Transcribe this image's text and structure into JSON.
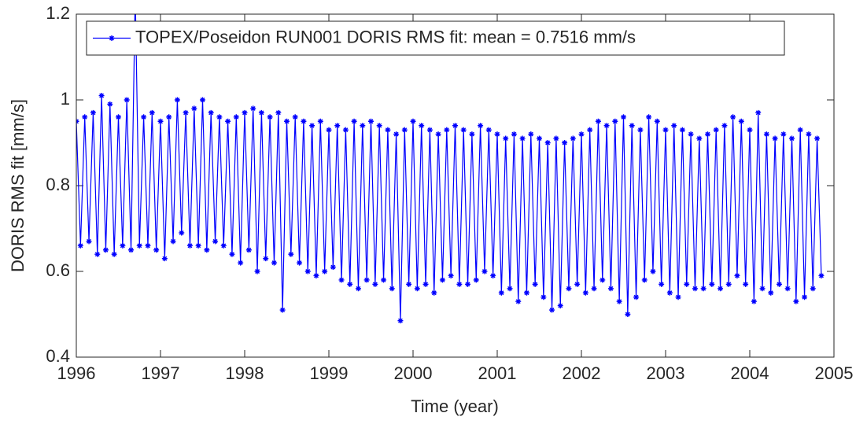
{
  "chart_data": {
    "type": "line",
    "xlabel": "Time (year)",
    "ylabel": "DORIS RMS fit [mm/s]",
    "xlim": [
      1996,
      2005
    ],
    "ylim": [
      0.4,
      1.2
    ],
    "xticks": [
      1996,
      1997,
      1998,
      1999,
      2000,
      2001,
      2002,
      2003,
      2004,
      2005
    ],
    "yticks": [
      0.4,
      0.6,
      0.8,
      1,
      1.2
    ],
    "legend": "top-left",
    "x": [
      1996,
      1996.05,
      1996.1,
      1996.15,
      1996.2,
      1996.25,
      1996.3,
      1996.35,
      1996.4,
      1996.45,
      1996.5,
      1996.55,
      1996.6,
      1996.65,
      1996.7,
      1996.75,
      1996.8,
      1996.85,
      1996.9,
      1996.95,
      1997,
      1997.05,
      1997.1,
      1997.15,
      1997.2,
      1997.25,
      1997.3,
      1997.35,
      1997.4,
      1997.45,
      1997.5,
      1997.55,
      1997.6,
      1997.65,
      1997.7,
      1997.75,
      1997.8,
      1997.85,
      1997.9,
      1997.95,
      1998,
      1998.05,
      1998.1,
      1998.15,
      1998.2,
      1998.25,
      1998.3,
      1998.35,
      1998.4,
      1998.45,
      1998.5,
      1998.55,
      1998.6,
      1998.65,
      1998.7,
      1998.75,
      1998.8,
      1998.85,
      1998.9,
      1998.95,
      1999,
      1999.05,
      1999.1,
      1999.15,
      1999.2,
      1999.25,
      1999.3,
      1999.35,
      1999.4,
      1999.45,
      1999.5,
      1999.55,
      1999.6,
      1999.65,
      1999.7,
      1999.75,
      1999.8,
      1999.85,
      1999.9,
      1999.95,
      2000,
      2000.05,
      2000.1,
      2000.15,
      2000.2,
      2000.25,
      2000.3,
      2000.35,
      2000.4,
      2000.45,
      2000.5,
      2000.55,
      2000.6,
      2000.65,
      2000.7,
      2000.75,
      2000.8,
      2000.85,
      2000.9,
      2000.95,
      2001,
      2001.05,
      2001.1,
      2001.15,
      2001.2,
      2001.25,
      2001.3,
      2001.35,
      2001.4,
      2001.45,
      2001.5,
      2001.55,
      2001.6,
      2001.65,
      2001.7,
      2001.75,
      2001.8,
      2001.85,
      2001.9,
      2001.95,
      2002,
      2002.05,
      2002.1,
      2002.15,
      2002.2,
      2002.25,
      2002.3,
      2002.35,
      2002.4,
      2002.45,
      2002.5,
      2002.55,
      2002.6,
      2002.65,
      2002.7,
      2002.75,
      2002.8,
      2002.85,
      2002.9,
      2002.95,
      2003,
      2003.05,
      2003.1,
      2003.15,
      2003.2,
      2003.25,
      2003.3,
      2003.35,
      2003.4,
      2003.45,
      2003.5,
      2003.55,
      2003.6,
      2003.65,
      2003.7,
      2003.75,
      2003.8,
      2003.85,
      2003.9,
      2003.95,
      2004,
      2004.05,
      2004.1,
      2004.15,
      2004.2,
      2004.25,
      2004.3,
      2004.35,
      2004.4,
      2004.45,
      2004.5,
      2004.55,
      2004.6,
      2004.65,
      2004.7,
      2004.75,
      2004.8,
      2004.85
    ],
    "series": [
      {
        "name": "TOPEX/Poseidon RUN001 DORIS RMS fit: mean = 0.7516 mm/s",
        "color": "#0000ff",
        "values": [
          0.95,
          0.66,
          0.96,
          0.67,
          0.97,
          0.64,
          1.01,
          0.65,
          0.99,
          0.64,
          0.96,
          0.66,
          1.0,
          0.65,
          1.25,
          0.66,
          0.96,
          0.66,
          0.97,
          0.65,
          0.95,
          0.63,
          0.96,
          0.67,
          1.0,
          0.69,
          0.97,
          0.66,
          0.98,
          0.66,
          1.0,
          0.65,
          0.97,
          0.67,
          0.96,
          0.66,
          0.95,
          0.64,
          0.96,
          0.62,
          0.97,
          0.65,
          0.98,
          0.6,
          0.97,
          0.63,
          0.96,
          0.62,
          0.97,
          0.51,
          0.95,
          0.64,
          0.96,
          0.62,
          0.95,
          0.6,
          0.94,
          0.59,
          0.95,
          0.6,
          0.93,
          0.61,
          0.94,
          0.58,
          0.93,
          0.57,
          0.95,
          0.56,
          0.94,
          0.58,
          0.95,
          0.57,
          0.94,
          0.58,
          0.93,
          0.56,
          0.92,
          0.485,
          0.93,
          0.57,
          0.95,
          0.56,
          0.94,
          0.57,
          0.93,
          0.55,
          0.92,
          0.58,
          0.93,
          0.59,
          0.94,
          0.57,
          0.93,
          0.57,
          0.92,
          0.58,
          0.94,
          0.6,
          0.93,
          0.59,
          0.92,
          0.55,
          0.91,
          0.56,
          0.92,
          0.53,
          0.91,
          0.55,
          0.92,
          0.57,
          0.91,
          0.54,
          0.9,
          0.51,
          0.91,
          0.52,
          0.9,
          0.56,
          0.91,
          0.57,
          0.92,
          0.55,
          0.93,
          0.56,
          0.95,
          0.58,
          0.94,
          0.56,
          0.95,
          0.53,
          0.96,
          0.5,
          0.94,
          0.54,
          0.93,
          0.58,
          0.96,
          0.6,
          0.95,
          0.57,
          0.93,
          0.55,
          0.94,
          0.54,
          0.93,
          0.57,
          0.92,
          0.56,
          0.91,
          0.56,
          0.92,
          0.57,
          0.93,
          0.56,
          0.94,
          0.57,
          0.96,
          0.59,
          0.95,
          0.57,
          0.93,
          0.53,
          0.97,
          0.56,
          0.92,
          0.55,
          0.91,
          0.57,
          0.92,
          0.56,
          0.91,
          0.53,
          0.93,
          0.54,
          0.92,
          0.56,
          0.91,
          0.59
        ]
      }
    ]
  }
}
